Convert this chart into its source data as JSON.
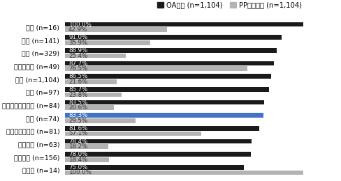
{
  "categories": [
    "心理学 (n=14)",
    "生物科学 (n=156)",
    "地球科学 (n=63)",
    "物理学・天文学 (n=81)",
    "医学 (n=74)",
    "人文学・社会科学 (n=84)",
    "農学 (n=97)",
    "全体 (n=1,104)",
    "計算機科学 (n=49)",
    "工学 (n=329)",
    "化学 (n=141)",
    "数学 (n=16)"
  ],
  "oa_values": [
    100.0,
    91.0,
    88.9,
    87.7,
    86.5,
    85.7,
    83.5,
    83.3,
    81.6,
    78.4,
    78.0,
    75.0
  ],
  "pp_values": [
    42.9,
    35.9,
    25.4,
    76.5,
    21.6,
    23.8,
    20.6,
    29.5,
    57.1,
    18.2,
    18.4,
    100.0
  ],
  "oa_labels": [
    "100.0%",
    "91.0%",
    "88.9%",
    "87.7%",
    "86.5%",
    "85.7%",
    "83.5%",
    "83.3%",
    "81.6%",
    "78.4%",
    "78.0%",
    "75.0%"
  ],
  "pp_labels": [
    "42.9%",
    "35.9%",
    "25.4%",
    "76.5%",
    "21.6%",
    "23.8%",
    "20.6%",
    "29.5%",
    "57.1%",
    "18.2%",
    "18.4%",
    "100.0%"
  ],
  "oa_color_default": "#1a1a1a",
  "oa_color_highlight": "#4472c4",
  "pp_color": "#b3b3b3",
  "highlight_category": "全体 (n=1,104)",
  "legend_oa": "OA経験 (n=1,104)",
  "legend_pp": "PP公開経験 (n=1,104)",
  "xlim": [
    0,
    115
  ],
  "bar_height": 0.37,
  "label_fontsize": 6.2,
  "tick_fontsize": 6.8,
  "legend_fontsize": 7.2
}
